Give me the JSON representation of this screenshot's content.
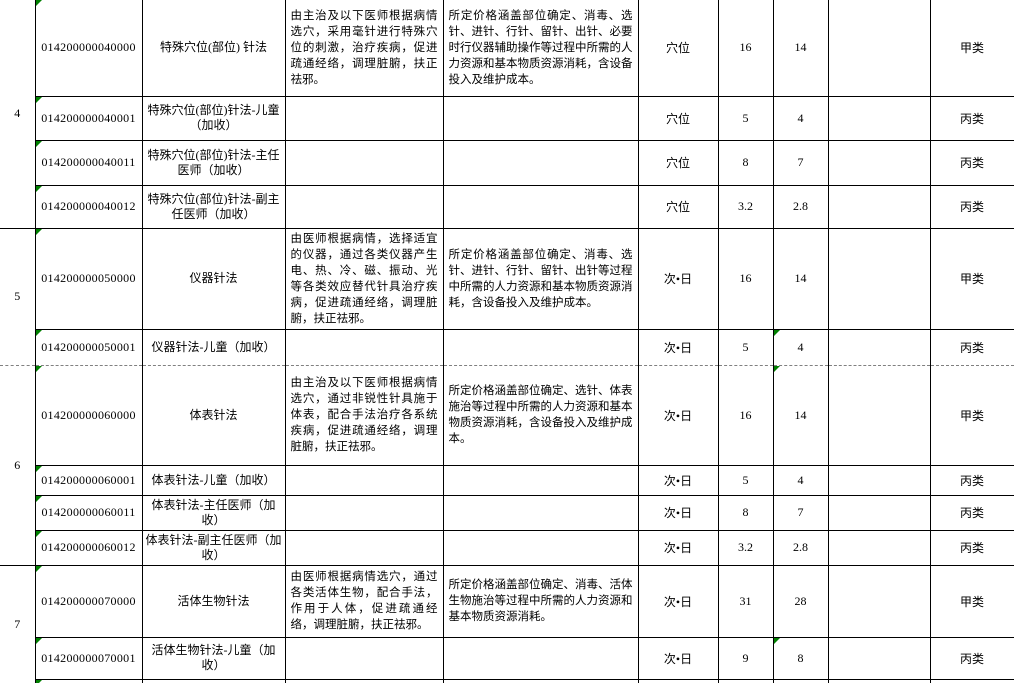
{
  "colors": {
    "border": "#000000",
    "indicator_green": "#008000",
    "page_break_gray": "#808080",
    "background": "#ffffff"
  },
  "groups": [
    {
      "no": "4",
      "rows": [
        {
          "code": "014200000040000",
          "name": "特殊穴位(部位) 针法",
          "desc": "由主治及以下医师根据病情选穴，采用毫针进行特殊穴位的刺激，治疗疾病，促进疏通经络，调理脏腑，扶正祛邪。",
          "price_note": "所定价格涵盖部位确定、消毒、选针、进针、行针、留针、出针、必要时行仪器辅助操作等过程中所需的人力资源和基本物质资源消耗，含设备投入及维护成本。",
          "unit": "穴位",
          "price1": "16",
          "price2": "14",
          "blank": "",
          "category": "甲类",
          "code_indicator": true,
          "price2_indicator": false
        },
        {
          "code": "014200000040001",
          "name": "特殊穴位(部位)针法-儿童（加收）",
          "desc": "",
          "price_note": "",
          "unit": "穴位",
          "price1": "5",
          "price2": "4",
          "blank": "",
          "category": "丙类",
          "code_indicator": true,
          "price2_indicator": false
        },
        {
          "code": "014200000040011",
          "name": "特殊穴位(部位)针法-主任医师（加收）",
          "desc": "",
          "price_note": "",
          "unit": "穴位",
          "price1": "8",
          "price2": "7",
          "blank": "",
          "category": "丙类",
          "code_indicator": true,
          "price2_indicator": false
        },
        {
          "code": "014200000040012",
          "name": "特殊穴位(部位)针法-副主任医师（加收）",
          "desc": "",
          "price_note": "",
          "unit": "穴位",
          "price1": "3.2",
          "price2": "2.8",
          "blank": "",
          "category": "丙类",
          "code_indicator": true,
          "price2_indicator": false
        }
      ]
    },
    {
      "no": "5",
      "rows": [
        {
          "code": "014200000050000",
          "name": "仪器针法",
          "desc": "由医师根据病情，选择适宜的仪器，通过各类仪器产生电、热、冷、磁、振动、光等各类效应替代针具治疗疾病，促进疏通经络，调理脏腑，扶正祛邪。",
          "price_note": "所定价格涵盖部位确定、消毒、选针、进针、行针、留针、出针等过程中所需的人力资源和基本物质资源消耗，含设备投入及维护成本。",
          "unit": "次•日",
          "price1": "16",
          "price2": "14",
          "blank": "",
          "category": "甲类",
          "code_indicator": true,
          "price2_indicator": false
        },
        {
          "code": "014200000050001",
          "name": "仪器针法-儿童（加收）",
          "desc": "",
          "price_note": "",
          "unit": "次•日",
          "price1": "5",
          "price2": "4",
          "blank": "",
          "category": "丙类",
          "code_indicator": true,
          "price2_indicator": true
        }
      ]
    },
    {
      "no": "6",
      "rows": [
        {
          "code": "014200000060000",
          "name": "体表针法",
          "desc": "由主治及以下医师根据病情选穴，通过非锐性针具施于体表，配合手法治疗各系统疾病，促进疏通经络，调理脏腑，扶正祛邪。",
          "price_note": "所定价格涵盖部位确定、选针、体表施治等过程中所需的人力资源和基本物质资源消耗，含设备投入及维护成本。",
          "unit": "次•日",
          "price1": "16",
          "price2": "14",
          "blank": "",
          "category": "甲类",
          "code_indicator": true,
          "price2_indicator": true
        },
        {
          "code": "014200000060001",
          "name": "体表针法-儿童（加收）",
          "desc": "",
          "price_note": "",
          "unit": "次•日",
          "price1": "5",
          "price2": "4",
          "blank": "",
          "category": "丙类",
          "code_indicator": true,
          "price2_indicator": false
        },
        {
          "code": "014200000060011",
          "name": "体表针法-主任医师（加收）",
          "desc": "",
          "price_note": "",
          "unit": "次•日",
          "price1": "8",
          "price2": "7",
          "blank": "",
          "category": "丙类",
          "code_indicator": true,
          "price2_indicator": false
        },
        {
          "code": "014200000060012",
          "name": "体表针法-副主任医师（加收）",
          "desc": "",
          "price_note": "",
          "unit": "次•日",
          "price1": "3.2",
          "price2": "2.8",
          "blank": "",
          "category": "丙类",
          "code_indicator": true,
          "price2_indicator": false
        }
      ]
    },
    {
      "no": "7",
      "rows": [
        {
          "code": "014200000070000",
          "name": "活体生物针法",
          "desc": "由医师根据病情选穴，通过各类活体生物，配合手法，作用于人体，促进疏通经络，调理脏腑，扶正祛邪。",
          "price_note": "所定价格涵盖部位确定、消毒、活体生物施治等过程中所需的人力资源和基本物质资源消耗。",
          "unit": "次•日",
          "price1": "31",
          "price2": "28",
          "blank": "",
          "category": "甲类",
          "code_indicator": true,
          "price2_indicator": false
        },
        {
          "code": "014200000070001",
          "name": "活体生物针法-儿童（加收）",
          "desc": "",
          "price_note": "",
          "unit": "次•日",
          "price1": "9",
          "price2": "8",
          "blank": "",
          "category": "丙类",
          "code_indicator": true,
          "price2_indicator": true
        }
      ]
    }
  ],
  "partial_bottom_row": {
    "code_indicator": true
  }
}
